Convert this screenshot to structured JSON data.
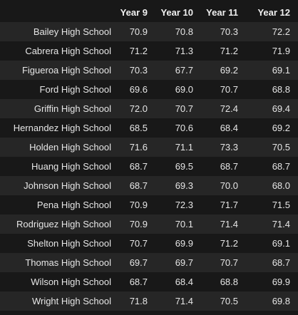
{
  "table": {
    "columns": [
      "",
      "Year 9",
      "Year 10",
      "Year 11",
      "Year 12"
    ],
    "rows": [
      {
        "school": "Bailey High School",
        "y9": "70.9",
        "y10": "70.8",
        "y11": "70.3",
        "y12": "72.2"
      },
      {
        "school": "Cabrera High School",
        "y9": "71.2",
        "y10": "71.3",
        "y11": "71.2",
        "y12": "71.9"
      },
      {
        "school": "Figueroa High School",
        "y9": "70.3",
        "y10": "67.7",
        "y11": "69.2",
        "y12": "69.1"
      },
      {
        "school": "Ford High School",
        "y9": "69.6",
        "y10": "69.0",
        "y11": "70.7",
        "y12": "68.8"
      },
      {
        "school": "Griffin High School",
        "y9": "72.0",
        "y10": "70.7",
        "y11": "72.4",
        "y12": "69.4"
      },
      {
        "school": "Hernandez High School",
        "y9": "68.5",
        "y10": "70.6",
        "y11": "68.4",
        "y12": "69.2"
      },
      {
        "school": "Holden High School",
        "y9": "71.6",
        "y10": "71.1",
        "y11": "73.3",
        "y12": "70.5"
      },
      {
        "school": "Huang High School",
        "y9": "68.7",
        "y10": "69.5",
        "y11": "68.7",
        "y12": "68.7"
      },
      {
        "school": "Johnson High School",
        "y9": "68.7",
        "y10": "69.3",
        "y11": "70.0",
        "y12": "68.0"
      },
      {
        "school": "Pena High School",
        "y9": "70.9",
        "y10": "72.3",
        "y11": "71.7",
        "y12": "71.5"
      },
      {
        "school": "Rodriguez High School",
        "y9": "70.9",
        "y10": "70.1",
        "y11": "71.4",
        "y12": "71.4"
      },
      {
        "school": "Shelton High School",
        "y9": "70.7",
        "y10": "69.9",
        "y11": "71.2",
        "y12": "69.1"
      },
      {
        "school": "Thomas High School",
        "y9": "69.7",
        "y10": "69.7",
        "y11": "70.7",
        "y12": "68.7"
      },
      {
        "school": "Wilson High School",
        "y9": "68.7",
        "y10": "68.4",
        "y11": "68.8",
        "y12": "69.9"
      },
      {
        "school": "Wright High School",
        "y9": "71.8",
        "y10": "71.4",
        "y11": "70.5",
        "y12": "69.8"
      }
    ]
  }
}
